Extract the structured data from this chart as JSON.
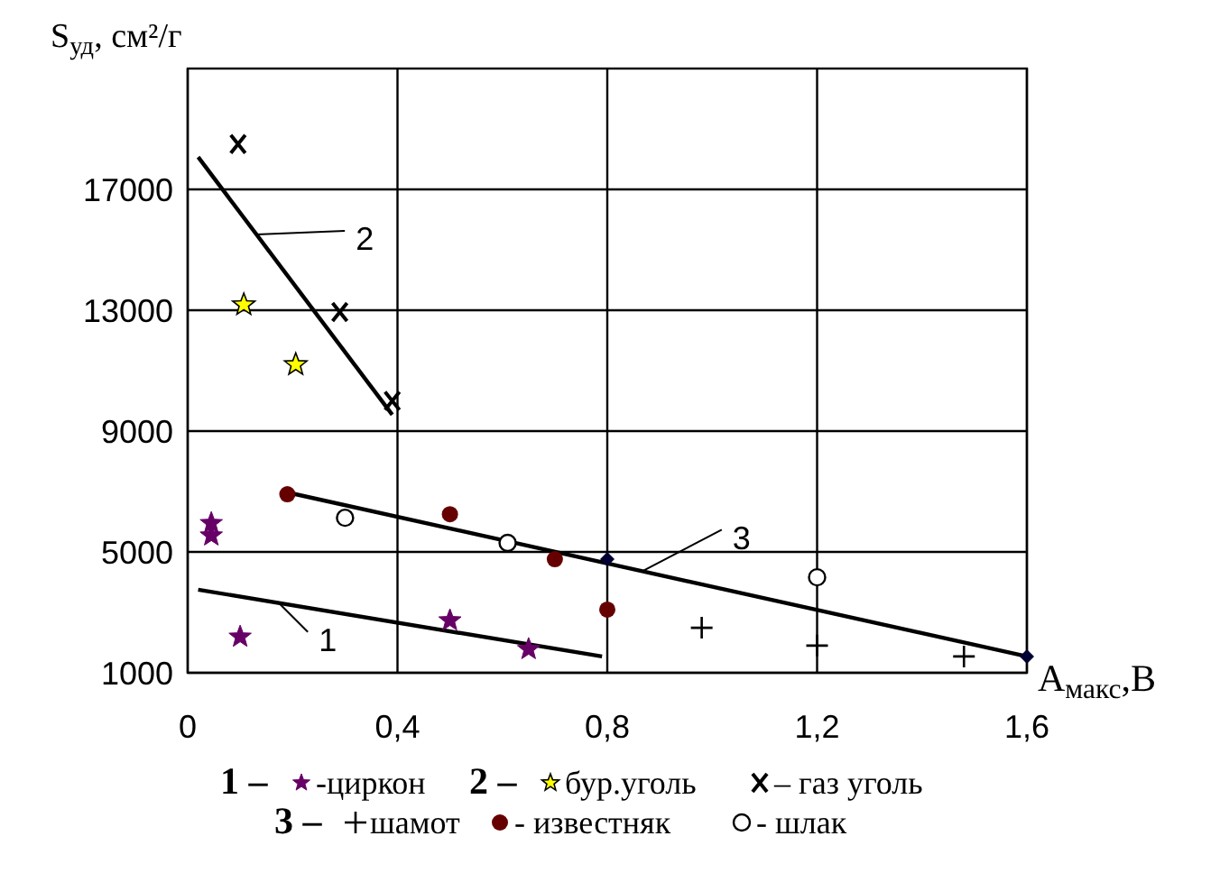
{
  "chart_data": {
    "type": "scatter",
    "xlabel": "A$_{макс}$,В",
    "ylabel": "S$_{уд}$, см²/г",
    "xlim": [
      0,
      1.6
    ],
    "ylim": [
      1000,
      21000
    ],
    "xticks": [
      0,
      {
        "value": 0.4,
        "label": "0,4"
      },
      {
        "value": 0.8,
        "label": "0,8"
      },
      {
        "value": 1.2,
        "label": "1,2"
      },
      {
        "value": 1.6,
        "label": "1,6"
      }
    ],
    "yticks": [
      1000,
      5000,
      9000,
      13000,
      17000
    ],
    "grid": true,
    "legend": "bottom",
    "annotations": [
      "1 –",
      "2 –",
      "3 –"
    ],
    "series": [
      {
        "name": "1",
        "type": "line",
        "color": "#000000",
        "x": [
          0.02,
          0.79
        ],
        "values": [
          3750,
          1540
        ]
      },
      {
        "name": "-циркон",
        "marker": "star",
        "color": "#660066",
        "x": [
          0.045,
          0.045,
          0.1,
          0.5,
          0.65
        ],
        "values": [
          5950,
          5540,
          2190,
          2730,
          1780
        ]
      },
      {
        "name": "2",
        "type": "line",
        "color": "#000000",
        "x": [
          0.02,
          0.39
        ],
        "values": [
          18070,
          9540
        ]
      },
      {
        "name": "бур.уголь",
        "marker": "star",
        "color": "#ffff00",
        "x": [
          0.107,
          0.206
        ],
        "values": [
          13180,
          11200
        ]
      },
      {
        "name": "– газ уголь",
        "marker": "x",
        "color": "#000000",
        "x": [
          0.096,
          0.29,
          0.39
        ],
        "values": [
          18500,
          12940,
          10000
        ]
      },
      {
        "name": "3",
        "type": "line",
        "color": "#000000",
        "x": [
          0.19,
          1.6
        ],
        "values": [
          6970,
          1540
        ]
      },
      {
        "name": "шамот",
        "marker": "cross",
        "color": "#000000",
        "x": [
          0.98,
          1.2,
          1.48
        ],
        "values": [
          2490,
          1900,
          1540
        ]
      },
      {
        "name": "- известняк",
        "marker": "circle",
        "color": "#660000",
        "x": [
          0.19,
          0.5,
          0.7,
          0.8
        ],
        "values": [
          6910,
          6250,
          4760,
          3090
        ]
      },
      {
        "name": "- шлак",
        "marker": "circle",
        "color": "#ffffff",
        "x": [
          0.3,
          0.61,
          1.2
        ],
        "values": [
          6130,
          5300,
          4160
        ]
      },
      {
        "marker": "diamond",
        "color": "#000033",
        "x": [
          0.8,
          1.6
        ],
        "values": [
          4760,
          1540
        ]
      }
    ]
  }
}
